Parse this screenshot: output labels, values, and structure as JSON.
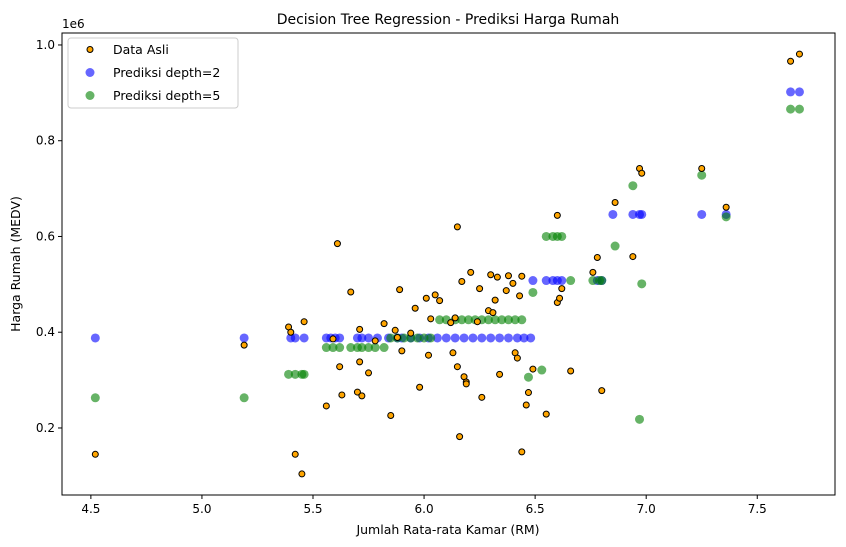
{
  "chart_data": {
    "type": "scatter",
    "title": "Decision Tree Regression - Prediksi Harga Rumah",
    "xlabel": "Jumlah Rata-rata Kamar (RM)",
    "ylabel": "Harga Rumah (MEDV)",
    "y_offset_label": "1e6",
    "xlim": [
      4.37,
      7.85
    ],
    "ylim": [
      60000,
      1025000
    ],
    "x_ticks": [
      4.5,
      5.0,
      5.5,
      6.0,
      6.5,
      7.0,
      7.5
    ],
    "x_tick_labels": [
      "4.5",
      "5.0",
      "5.5",
      "6.0",
      "6.5",
      "7.0",
      "7.5"
    ],
    "y_ticks": [
      200000,
      400000,
      600000,
      800000,
      1000000
    ],
    "y_tick_labels": [
      "0.2",
      "0.4",
      "0.6",
      "0.8",
      "1.0"
    ],
    "grid": false,
    "legend_position": "upper-left",
    "series": [
      {
        "name": "Data Asli",
        "color": "#ffa500",
        "edge": "#000000",
        "marker": "small-circle-outlined",
        "points": [
          [
            4.52,
            145000
          ],
          [
            5.19,
            373000
          ],
          [
            5.39,
            411000
          ],
          [
            5.4,
            400000
          ],
          [
            5.42,
            145000
          ],
          [
            5.45,
            104000
          ],
          [
            5.46,
            422000
          ],
          [
            5.56,
            246000
          ],
          [
            5.59,
            386000
          ],
          [
            5.61,
            585000
          ],
          [
            5.62,
            328000
          ],
          [
            5.63,
            269000
          ],
          [
            5.67,
            484000
          ],
          [
            5.7,
            275000
          ],
          [
            5.71,
            406000
          ],
          [
            5.71,
            338000
          ],
          [
            5.72,
            267000
          ],
          [
            5.75,
            315000
          ],
          [
            5.78,
            382000
          ],
          [
            5.82,
            418000
          ],
          [
            5.85,
            226000
          ],
          [
            5.87,
            404000
          ],
          [
            5.88,
            389000
          ],
          [
            5.89,
            489000
          ],
          [
            5.9,
            361000
          ],
          [
            5.94,
            398000
          ],
          [
            5.96,
            450000
          ],
          [
            5.98,
            285000
          ],
          [
            6.01,
            471000
          ],
          [
            6.02,
            352000
          ],
          [
            6.03,
            428000
          ],
          [
            6.05,
            478000
          ],
          [
            6.07,
            466000
          ],
          [
            6.12,
            420000
          ],
          [
            6.13,
            357000
          ],
          [
            6.14,
            430000
          ],
          [
            6.15,
            328000
          ],
          [
            6.15,
            620000
          ],
          [
            6.16,
            182000
          ],
          [
            6.17,
            506000
          ],
          [
            6.18,
            307000
          ],
          [
            6.19,
            296000
          ],
          [
            6.19,
            292000
          ],
          [
            6.21,
            525000
          ],
          [
            6.24,
            422000
          ],
          [
            6.25,
            491000
          ],
          [
            6.26,
            264000
          ],
          [
            6.29,
            445000
          ],
          [
            6.3,
            520000
          ],
          [
            6.31,
            441000
          ],
          [
            6.32,
            467000
          ],
          [
            6.33,
            515000
          ],
          [
            6.34,
            312000
          ],
          [
            6.37,
            487000
          ],
          [
            6.38,
            518000
          ],
          [
            6.4,
            502000
          ],
          [
            6.41,
            357000
          ],
          [
            6.42,
            346000
          ],
          [
            6.43,
            476000
          ],
          [
            6.44,
            517000
          ],
          [
            6.44,
            150000
          ],
          [
            6.46,
            248000
          ],
          [
            6.47,
            274000
          ],
          [
            6.49,
            323000
          ],
          [
            6.55,
            229000
          ],
          [
            6.6,
            462000
          ],
          [
            6.6,
            644000
          ],
          [
            6.61,
            471000
          ],
          [
            6.62,
            491000
          ],
          [
            6.66,
            319000
          ],
          [
            6.76,
            525000
          ],
          [
            6.78,
            556000
          ],
          [
            6.8,
            278000
          ],
          [
            6.86,
            671000
          ],
          [
            6.94,
            558000
          ],
          [
            6.97,
            742000
          ],
          [
            6.98,
            732000
          ],
          [
            7.25,
            742000
          ],
          [
            7.36,
            661000
          ],
          [
            7.65,
            966000
          ],
          [
            7.69,
            981000
          ]
        ]
      },
      {
        "name": "Prediksi depth=2",
        "color": "#0000ff",
        "alpha": 0.6,
        "marker": "circle",
        "points": [
          [
            4.52,
            388000
          ],
          [
            5.19,
            388000
          ],
          [
            5.4,
            388000
          ],
          [
            5.42,
            388000
          ],
          [
            5.46,
            388000
          ],
          [
            5.56,
            388000
          ],
          [
            5.58,
            388000
          ],
          [
            5.6,
            388000
          ],
          [
            5.62,
            388000
          ],
          [
            5.7,
            388000
          ],
          [
            5.72,
            388000
          ],
          [
            5.75,
            388000
          ],
          [
            5.79,
            388000
          ],
          [
            5.84,
            388000
          ],
          [
            5.88,
            388000
          ],
          [
            5.9,
            388000
          ],
          [
            5.94,
            388000
          ],
          [
            5.98,
            388000
          ],
          [
            6.02,
            388000
          ],
          [
            6.06,
            388000
          ],
          [
            6.1,
            388000
          ],
          [
            6.14,
            388000
          ],
          [
            6.18,
            388000
          ],
          [
            6.22,
            388000
          ],
          [
            6.26,
            388000
          ],
          [
            6.3,
            388000
          ],
          [
            6.34,
            388000
          ],
          [
            6.38,
            388000
          ],
          [
            6.42,
            388000
          ],
          [
            6.45,
            388000
          ],
          [
            6.48,
            388000
          ],
          [
            6.49,
            508000
          ],
          [
            6.55,
            508000
          ],
          [
            6.58,
            508000
          ],
          [
            6.6,
            508000
          ],
          [
            6.62,
            508000
          ],
          [
            6.78,
            508000
          ],
          [
            6.8,
            508000
          ],
          [
            6.85,
            646000
          ],
          [
            6.94,
            646000
          ],
          [
            6.97,
            646000
          ],
          [
            6.98,
            646000
          ],
          [
            7.25,
            646000
          ],
          [
            7.36,
            646000
          ],
          [
            7.65,
            902000
          ],
          [
            7.69,
            902000
          ]
        ]
      },
      {
        "name": "Prediksi depth=5",
        "color": "#008000",
        "alpha": 0.6,
        "marker": "circle",
        "points": [
          [
            4.52,
            263000
          ],
          [
            5.19,
            263000
          ],
          [
            5.39,
            312000
          ],
          [
            5.42,
            312000
          ],
          [
            5.45,
            312000
          ],
          [
            5.46,
            312000
          ],
          [
            5.56,
            368000
          ],
          [
            5.59,
            368000
          ],
          [
            5.62,
            368000
          ],
          [
            5.67,
            368000
          ],
          [
            5.7,
            368000
          ],
          [
            5.72,
            368000
          ],
          [
            5.75,
            368000
          ],
          [
            5.78,
            368000
          ],
          [
            5.82,
            368000
          ],
          [
            5.85,
            388000
          ],
          [
            5.88,
            388000
          ],
          [
            5.91,
            388000
          ],
          [
            5.94,
            388000
          ],
          [
            5.97,
            388000
          ],
          [
            6.0,
            388000
          ],
          [
            6.03,
            388000
          ],
          [
            6.07,
            426000
          ],
          [
            6.1,
            426000
          ],
          [
            6.14,
            426000
          ],
          [
            6.17,
            426000
          ],
          [
            6.2,
            426000
          ],
          [
            6.23,
            426000
          ],
          [
            6.26,
            426000
          ],
          [
            6.29,
            426000
          ],
          [
            6.32,
            426000
          ],
          [
            6.35,
            426000
          ],
          [
            6.38,
            426000
          ],
          [
            6.41,
            426000
          ],
          [
            6.44,
            426000
          ],
          [
            6.47,
            306000
          ],
          [
            6.49,
            483000
          ],
          [
            6.53,
            321000
          ],
          [
            6.55,
            600000
          ],
          [
            6.58,
            600000
          ],
          [
            6.6,
            600000
          ],
          [
            6.62,
            600000
          ],
          [
            6.66,
            508000
          ],
          [
            6.76,
            508000
          ],
          [
            6.79,
            508000
          ],
          [
            6.8,
            508000
          ],
          [
            6.86,
            580000
          ],
          [
            6.94,
            706000
          ],
          [
            6.97,
            218000
          ],
          [
            6.98,
            501000
          ],
          [
            7.25,
            728000
          ],
          [
            7.36,
            641000
          ],
          [
            7.65,
            866000
          ],
          [
            7.69,
            866000
          ]
        ]
      }
    ]
  }
}
